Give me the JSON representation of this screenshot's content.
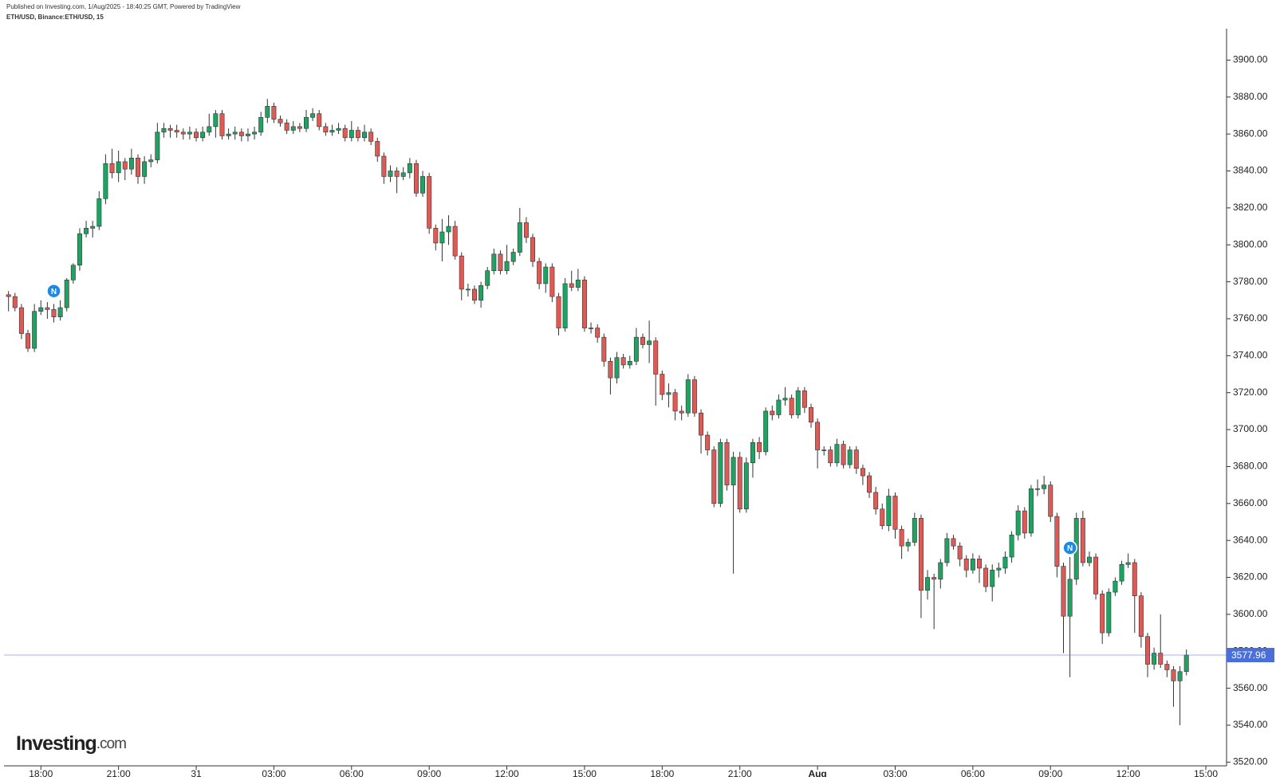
{
  "header": {
    "published": "Published on Investing.com, 1/Aug/2025 - 18:40:25 GMT, Powered by TradingView",
    "symbol": "ETH/USD, Binance:ETH/USD, 15"
  },
  "logo": {
    "brand": "Investing",
    "suffix": ".com"
  },
  "chart_data": {
    "type": "candlestick",
    "up_color": "#1fa363",
    "down_color": "#e05a55",
    "xlim": [
      -0.7,
      188.2
    ],
    "ylim": [
      3518,
      3917
    ],
    "xticks": [
      {
        "value": 5,
        "label": "18:00"
      },
      {
        "value": 17,
        "label": "21:00"
      },
      {
        "value": 29,
        "label": "31"
      },
      {
        "value": 41,
        "label": "03:00"
      },
      {
        "value": 53,
        "label": "06:00"
      },
      {
        "value": 65,
        "label": "09:00"
      },
      {
        "value": 77,
        "label": "12:00"
      },
      {
        "value": 89,
        "label": "15:00"
      },
      {
        "value": 101,
        "label": "18:00"
      },
      {
        "value": 113,
        "label": "21:00"
      },
      {
        "value": 125,
        "label": "Aug"
      },
      {
        "value": 137,
        "label": "03:00"
      },
      {
        "value": 149,
        "label": "06:00"
      },
      {
        "value": 161,
        "label": "09:00"
      },
      {
        "value": 173,
        "label": "12:00"
      },
      {
        "value": 185,
        "label": "15:00"
      }
    ],
    "yticks": [
      {
        "value": 3520,
        "label": "3520.00"
      },
      {
        "value": 3540,
        "label": "3540.00"
      },
      {
        "value": 3560,
        "label": "3560.00"
      },
      {
        "value": 3580,
        "label": "3580.00"
      },
      {
        "value": 3600,
        "label": "3600.00"
      },
      {
        "value": 3620,
        "label": "3620.00"
      },
      {
        "value": 3640,
        "label": "3640.00"
      },
      {
        "value": 3660,
        "label": "3660.00"
      },
      {
        "value": 3680,
        "label": "3680.00"
      },
      {
        "value": 3700,
        "label": "3700.00"
      },
      {
        "value": 3720,
        "label": "3720.00"
      },
      {
        "value": 3740,
        "label": "3740.00"
      },
      {
        "value": 3760,
        "label": "3760.00"
      },
      {
        "value": 3780,
        "label": "3780.00"
      },
      {
        "value": 3800,
        "label": "3800.00"
      },
      {
        "value": 3820,
        "label": "3820.00"
      },
      {
        "value": 3840,
        "label": "3840.00"
      },
      {
        "value": 3860,
        "label": "3860.00"
      },
      {
        "value": 3880,
        "label": "3880.00"
      },
      {
        "value": 3900,
        "label": "3900.00"
      }
    ],
    "last_price": 3577.96,
    "last_price_color": "#4a6fd8",
    "events": [
      {
        "x": 7,
        "y": 3775,
        "label": "N"
      },
      {
        "x": 164,
        "y": 3636,
        "label": "N"
      }
    ],
    "event_color": "#1e88e5",
    "open": [
      3773,
      3772,
      3766,
      3752,
      3744,
      3764,
      3766,
      3765,
      3761,
      3766,
      3781,
      3789,
      3806,
      3809,
      3810,
      3825,
      3844,
      3839,
      3845,
      3841,
      3847,
      3837,
      3845,
      3846,
      3861,
      3863,
      3862,
      3861,
      3860,
      3861,
      3858,
      3861,
      3864,
      3871,
      3859,
      3860,
      3861,
      3859,
      3860,
      3861,
      3869,
      3875,
      3868,
      3866,
      3862,
      3864,
      3863,
      3869,
      3871,
      3864,
      3861,
      3862,
      3863,
      3858,
      3862,
      3858,
      3861,
      3856,
      3848,
      3837,
      3840,
      3837,
      3839,
      3844,
      3828,
      3837,
      3809,
      3801,
      3807,
      3810,
      3794,
      3776,
      3776,
      3770,
      3778,
      3786,
      3795,
      3786,
      3791,
      3796,
      3812,
      3804,
      3791,
      3779,
      3788,
      3772,
      3755,
      3779,
      3777,
      3781,
      3755,
      3755,
      3750,
      3737,
      3728,
      3739,
      3735,
      3737,
      3750,
      3746,
      3748,
      3730,
      3719,
      3720,
      3710,
      3709,
      3727,
      3709,
      3697,
      3689,
      3660,
      3693,
      3670,
      3685,
      3657,
      3682,
      3693,
      3688,
      3710,
      3708,
      3716,
      3717,
      3708,
      3721,
      3712,
      3704,
      3689,
      3689,
      3682,
      3692,
      3681,
      3689,
      3679,
      3675,
      3666,
      3657,
      3648,
      3664,
      3646,
      3637,
      3639,
      3652,
      3613,
      3620,
      3619,
      3628,
      3641,
      3637,
      3630,
      3624,
      3630,
      3625,
      3615,
      3624,
      3625,
      3631,
      3643,
      3656,
      3644,
      3668,
      3668,
      3670,
      3653,
      3626,
      3599,
      3619,
      3652,
      3628,
      3631,
      3611,
      3590,
      3612,
      3618,
      3627,
      3628,
      3610,
      3588,
      3573,
      3579,
      3573,
      3570,
      3564,
      3569
    ],
    "high": [
      3775,
      3774,
      3768,
      3754,
      3768,
      3770,
      3769,
      3768,
      3770,
      3782,
      3790,
      3809,
      3813,
      3813,
      3829,
      3849,
      3852,
      3851,
      3847,
      3852,
      3849,
      3848,
      3849,
      3866,
      3866,
      3865,
      3865,
      3863,
      3864,
      3863,
      3864,
      3871,
      3873,
      3873,
      3863,
      3864,
      3863,
      3863,
      3864,
      3872,
      3879,
      3877,
      3870,
      3868,
      3867,
      3866,
      3873,
      3874,
      3873,
      3866,
      3865,
      3866,
      3865,
      3867,
      3864,
      3865,
      3863,
      3858,
      3850,
      3843,
      3842,
      3842,
      3847,
      3846,
      3840,
      3839,
      3811,
      3814,
      3816,
      3813,
      3796,
      3779,
      3778,
      3780,
      3788,
      3798,
      3797,
      3800,
      3798,
      3820,
      3815,
      3806,
      3793,
      3790,
      3790,
      3774,
      3782,
      3786,
      3787,
      3783,
      3758,
      3757,
      3752,
      3739,
      3742,
      3741,
      3740,
      3755,
      3752,
      3759,
      3750,
      3732,
      3725,
      3722,
      3713,
      3730,
      3729,
      3711,
      3699,
      3691,
      3695,
      3695,
      3688,
      3688,
      3685,
      3695,
      3696,
      3712,
      3713,
      3719,
      3723,
      3719,
      3723,
      3723,
      3714,
      3706,
      3691,
      3691,
      3695,
      3694,
      3691,
      3691,
      3681,
      3677,
      3669,
      3660,
      3668,
      3666,
      3648,
      3641,
      3655,
      3654,
      3624,
      3622,
      3630,
      3644,
      3643,
      3639,
      3632,
      3633,
      3632,
      3627,
      3627,
      3628,
      3634,
      3645,
      3659,
      3658,
      3670,
      3673,
      3675,
      3672,
      3655,
      3628,
      3631,
      3655,
      3656,
      3634,
      3633,
      3613,
      3614,
      3620,
      3629,
      3633,
      3630,
      3612,
      3590,
      3582,
      3600,
      3575,
      3572,
      3572,
      3581
    ],
    "low": [
      3764,
      3764,
      3749,
      3742,
      3742,
      3762,
      3760,
      3758,
      3759,
      3764,
      3779,
      3786,
      3804,
      3804,
      3808,
      3822,
      3836,
      3834,
      3835,
      3838,
      3833,
      3833,
      3842,
      3844,
      3858,
      3858,
      3858,
      3857,
      3857,
      3856,
      3856,
      3859,
      3858,
      3857,
      3857,
      3857,
      3856,
      3856,
      3857,
      3859,
      3866,
      3866,
      3864,
      3860,
      3860,
      3861,
      3861,
      3867,
      3862,
      3859,
      3859,
      3860,
      3856,
      3856,
      3856,
      3856,
      3854,
      3845,
      3833,
      3834,
      3828,
      3835,
      3836,
      3826,
      3826,
      3806,
      3797,
      3791,
      3800,
      3792,
      3770,
      3772,
      3768,
      3766,
      3776,
      3784,
      3784,
      3784,
      3789,
      3794,
      3801,
      3788,
      3776,
      3774,
      3769,
      3751,
      3753,
      3775,
      3775,
      3753,
      3752,
      3747,
      3734,
      3719,
      3725,
      3733,
      3733,
      3735,
      3744,
      3736,
      3713,
      3716,
      3712,
      3705,
      3705,
      3707,
      3707,
      3687,
      3686,
      3658,
      3658,
      3667,
      3622,
      3655,
      3655,
      3674,
      3684,
      3686,
      3705,
      3706,
      3713,
      3706,
      3706,
      3709,
      3701,
      3679,
      3686,
      3680,
      3680,
      3679,
      3679,
      3676,
      3670,
      3663,
      3654,
      3646,
      3645,
      3641,
      3630,
      3634,
      3637,
      3598,
      3608,
      3592,
      3614,
      3626,
      3635,
      3626,
      3620,
      3622,
      3617,
      3612,
      3607,
      3620,
      3622,
      3628,
      3640,
      3641,
      3642,
      3664,
      3665,
      3650,
      3620,
      3579,
      3566,
      3616,
      3626,
      3626,
      3608,
      3584,
      3588,
      3610,
      3616,
      3625,
      3590,
      3582,
      3566,
      3570,
      3571,
      3566,
      3550,
      3540,
      3567
    ],
    "close": [
      3772,
      3766,
      3752,
      3744,
      3764,
      3766,
      3765,
      3761,
      3766,
      3781,
      3789,
      3806,
      3809,
      3810,
      3825,
      3844,
      3839,
      3845,
      3841,
      3847,
      3837,
      3845,
      3846,
      3861,
      3863,
      3862,
      3861,
      3860,
      3861,
      3858,
      3861,
      3864,
      3871,
      3859,
      3860,
      3861,
      3859,
      3860,
      3861,
      3869,
      3875,
      3868,
      3866,
      3862,
      3864,
      3863,
      3869,
      3871,
      3864,
      3861,
      3862,
      3863,
      3858,
      3862,
      3858,
      3861,
      3856,
      3848,
      3837,
      3840,
      3837,
      3839,
      3844,
      3828,
      3837,
      3809,
      3801,
      3807,
      3810,
      3794,
      3776,
      3776,
      3770,
      3778,
      3786,
      3795,
      3786,
      3791,
      3796,
      3812,
      3804,
      3791,
      3779,
      3788,
      3772,
      3755,
      3779,
      3777,
      3781,
      3755,
      3755,
      3750,
      3737,
      3728,
      3739,
      3735,
      3737,
      3750,
      3746,
      3748,
      3730,
      3719,
      3720,
      3710,
      3709,
      3727,
      3709,
      3697,
      3689,
      3660,
      3693,
      3670,
      3685,
      3657,
      3682,
      3693,
      3688,
      3710,
      3708,
      3716,
      3717,
      3708,
      3721,
      3712,
      3704,
      3689,
      3689,
      3682,
      3692,
      3681,
      3689,
      3679,
      3675,
      3666,
      3657,
      3648,
      3664,
      3646,
      3637,
      3639,
      3652,
      3613,
      3620,
      3619,
      3628,
      3641,
      3637,
      3630,
      3624,
      3630,
      3625,
      3615,
      3624,
      3625,
      3631,
      3643,
      3656,
      3644,
      3668,
      3668,
      3670,
      3653,
      3626,
      3599,
      3619,
      3652,
      3628,
      3631,
      3611,
      3590,
      3612,
      3618,
      3627,
      3628,
      3610,
      3588,
      3573,
      3579,
      3573,
      3570,
      3564,
      3569,
      3577.96
    ]
  }
}
